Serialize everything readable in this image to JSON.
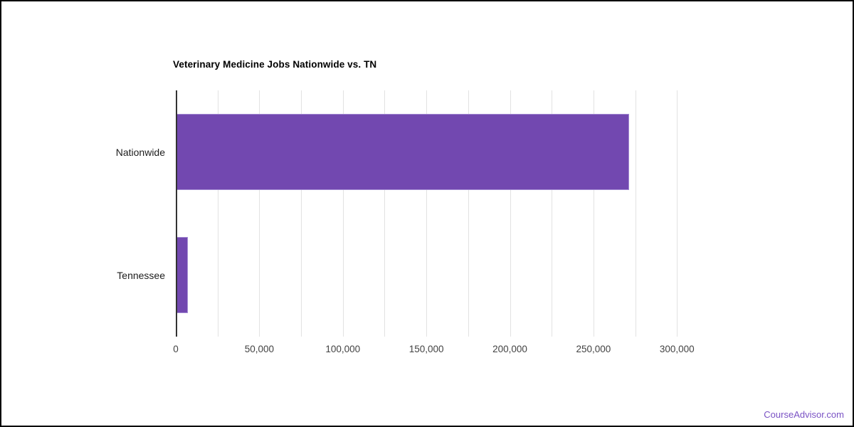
{
  "frame": {
    "background": "#ffffff",
    "border_color": "#000000"
  },
  "chart_data": {
    "type": "bar",
    "orientation": "horizontal",
    "title": "Veterinary Medicine Jobs Nationwide vs. TN",
    "categories": [
      "Nationwide",
      "Tennessee"
    ],
    "values": [
      271000,
      6800
    ],
    "xlabel": "",
    "ylabel": "",
    "xlim": [
      0,
      325000
    ],
    "x_gridline_step": 25000,
    "x_label_step": 50000,
    "x_tick_labels": [
      "0",
      "50,000",
      "100,000",
      "150,000",
      "200,000",
      "250,000",
      "300,000"
    ],
    "grid": true,
    "legend": "none",
    "bar_height_ratio": 0.62,
    "colors": {
      "bar_fill": "#7248b0",
      "bar_stroke": "#a28ad2",
      "gridline": "#e2e2e2",
      "axis_line": "#333333",
      "tick_label": "#424242",
      "category_label": "#1d1d1d",
      "title": "#000000"
    }
  },
  "footer": {
    "brand_label": "CourseAdvisor.com",
    "brand_color": "#7a52c4"
  }
}
